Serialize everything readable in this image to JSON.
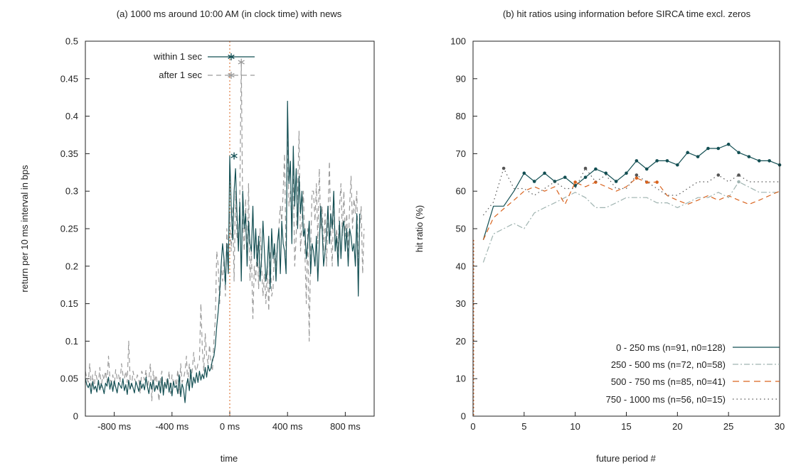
{
  "colors": {
    "teal": "#134f53",
    "gray": "#9a9a9a",
    "lightgray": "#9fb3b0",
    "orange": "#d9631e",
    "darkgray": "#555555",
    "axis": "#222222",
    "vline": "#d9631e"
  },
  "chart_data": [
    {
      "type": "line",
      "title": "(a) 1000 ms around 10:00 AM (in clock time) with news",
      "xlabel": "time",
      "ylabel": "return per 10 ms interval in bps",
      "xlim": [
        -1000,
        1000
      ],
      "ylim": [
        0,
        0.5
      ],
      "xticks": [
        -800,
        -400,
        0,
        400,
        800
      ],
      "xtick_labels": [
        "-800 ms",
        "-400 ms",
        "0 ms",
        "400 ms",
        "800 ms"
      ],
      "yticks": [
        0,
        0.05,
        0.1,
        0.15,
        0.2,
        0.25,
        0.3,
        0.35,
        0.4,
        0.45,
        0.5
      ],
      "ytick_labels": [
        "0",
        "0.05",
        "0.1",
        "0.15",
        "0.2",
        "0.25",
        "0.3",
        "0.35",
        "0.4",
        "0.45",
        "0.5"
      ],
      "vertical_line_x": 0,
      "legend_position": "top-center",
      "series": [
        {
          "name": "within 1 sec",
          "style": "solid",
          "color_key": "teal",
          "x_start": -1000,
          "x_step": 10,
          "values": [
            0.05,
            0.042,
            0.038,
            0.044,
            0.03,
            0.046,
            0.036,
            0.04,
            0.032,
            0.048,
            0.035,
            0.043,
            0.038,
            0.03,
            0.044,
            0.04,
            0.052,
            0.036,
            0.046,
            0.033,
            0.047,
            0.039,
            0.031,
            0.045,
            0.041,
            0.037,
            0.05,
            0.034,
            0.042,
            0.029,
            0.048,
            0.036,
            0.044,
            0.038,
            0.031,
            0.046,
            0.04,
            0.033,
            0.047,
            0.037,
            0.043,
            0.035,
            0.052,
            0.039,
            0.03,
            0.045,
            0.036,
            0.048,
            0.033,
            0.041,
            0.036,
            0.047,
            0.031,
            0.052,
            0.028,
            0.045,
            0.037,
            0.05,
            0.032,
            0.044,
            0.027,
            0.046,
            0.038,
            0.041,
            0.03,
            0.055,
            0.026,
            0.043,
            0.036,
            0.018,
            0.042,
            0.05,
            0.034,
            0.062,
            0.038,
            0.052,
            0.044,
            0.058,
            0.045,
            0.06,
            0.048,
            0.056,
            0.05,
            0.065,
            0.052,
            0.068,
            0.06,
            0.064,
            0.075,
            0.08,
            0.095,
            0.12,
            0.14,
            0.165,
            0.2,
            0.23,
            0.21,
            0.175,
            0.23,
            0.19,
            0.347,
            0.28,
            0.235,
            0.3,
            0.33,
            0.27,
            0.22,
            0.285,
            0.18,
            0.3,
            0.25,
            0.27,
            0.2,
            0.26,
            0.23,
            0.22,
            0.28,
            0.21,
            0.25,
            0.2,
            0.24,
            0.18,
            0.21,
            0.26,
            0.22,
            0.18,
            0.2,
            0.24,
            0.17,
            0.25,
            0.21,
            0.23,
            0.18,
            0.23,
            0.25,
            0.19,
            0.26,
            0.23,
            0.22,
            0.19,
            0.42,
            0.31,
            0.34,
            0.23,
            0.36,
            0.28,
            0.33,
            0.25,
            0.32,
            0.27,
            0.3,
            0.24,
            0.25,
            0.21,
            0.23,
            0.26,
            0.19,
            0.23,
            0.22,
            0.2,
            0.24,
            0.18,
            0.23,
            0.28,
            0.25,
            0.2,
            0.22,
            0.24,
            0.28,
            0.23,
            0.27,
            0.25,
            0.3,
            0.22,
            0.24,
            0.2,
            0.26,
            0.21,
            0.25,
            0.26,
            0.22,
            0.25,
            0.2,
            0.25,
            0.24,
            0.22,
            0.23,
            0.2,
            0.27,
            0.16,
            0.27
          ],
          "marker": {
            "x": 30,
            "y": 0.347,
            "symbol": "asterisk"
          }
        },
        {
          "name": "after 1 sec",
          "style": "dashed",
          "color_key": "gray",
          "x_start": -1000,
          "x_step": 10,
          "values": [
            0.06,
            0.05,
            0.045,
            0.07,
            0.04,
            0.055,
            0.035,
            0.06,
            0.05,
            0.042,
            0.065,
            0.038,
            0.055,
            0.048,
            0.06,
            0.045,
            0.08,
            0.05,
            0.045,
            0.055,
            0.04,
            0.062,
            0.05,
            0.055,
            0.045,
            0.07,
            0.055,
            0.05,
            0.06,
            0.045,
            0.1,
            0.05,
            0.04,
            0.06,
            0.05,
            0.045,
            0.055,
            0.05,
            0.03,
            0.06,
            0.055,
            0.048,
            0.062,
            0.038,
            0.05,
            0.07,
            0.02,
            0.06,
            0.045,
            0.055,
            0.04,
            0.02,
            0.05,
            0.06,
            0.035,
            0.045,
            0.05,
            0.04,
            0.06,
            0.03,
            0.055,
            0.045,
            0.05,
            0.04,
            0.062,
            0.03,
            0.07,
            0.045,
            0.05,
            0.06,
            0.08,
            0.04,
            0.07,
            0.05,
            0.06,
            0.085,
            0.065,
            0.06,
            0.07,
            0.075,
            0.15,
            0.09,
            0.06,
            0.11,
            0.08,
            0.07,
            0.095,
            0.07,
            0.06,
            0.1,
            0.13,
            0.22,
            0.2,
            0.15,
            0.2,
            0.18,
            0.21,
            0.16,
            0.25,
            0.21,
            0.27,
            0.22,
            0.28,
            0.18,
            0.3,
            0.24,
            0.23,
            0.3,
            0.472,
            0.26,
            0.22,
            0.29,
            0.2,
            0.31,
            0.18,
            0.22,
            0.13,
            0.2,
            0.18,
            0.23,
            0.17,
            0.25,
            0.2,
            0.16,
            0.19,
            0.15,
            0.2,
            0.14,
            0.22,
            0.16,
            0.17,
            0.23,
            0.2,
            0.23,
            0.25,
            0.28,
            0.26,
            0.3,
            0.35,
            0.2,
            0.38,
            0.28,
            0.3,
            0.25,
            0.33,
            0.2,
            0.24,
            0.3,
            0.38,
            0.22,
            0.26,
            0.3,
            0.22,
            0.15,
            0.25,
            0.1,
            0.22,
            0.3,
            0.3,
            0.26,
            0.31,
            0.23,
            0.33,
            0.25,
            0.28,
            0.22,
            0.27,
            0.2,
            0.26,
            0.34,
            0.24,
            0.2,
            0.3,
            0.23,
            0.25,
            0.22,
            0.28,
            0.31,
            0.24,
            0.3,
            0.24,
            0.27,
            0.22,
            0.28,
            0.32,
            0.25,
            0.29,
            0.27,
            0.3,
            0.2,
            0.25,
            0.28,
            0.19,
            0.25
          ],
          "marker": {
            "x": 80,
            "y": 0.472,
            "symbol": "asterisk"
          }
        }
      ]
    },
    {
      "type": "line",
      "title": "(b) hit ratios using information before SIRCA time excl. zeros",
      "xlabel": "future period #",
      "ylabel": "hit ratio (%)",
      "xlim": [
        0,
        30
      ],
      "ylim": [
        0,
        100
      ],
      "xticks": [
        0,
        5,
        10,
        15,
        20,
        25,
        30
      ],
      "xtick_labels": [
        "0",
        "5",
        "10",
        "15",
        "20",
        "25",
        "30"
      ],
      "yticks": [
        0,
        10,
        20,
        30,
        40,
        50,
        60,
        70,
        80,
        90,
        100
      ],
      "ytick_labels": [
        "0",
        "10",
        "20",
        "30",
        "40",
        "50",
        "60",
        "70",
        "80",
        "90",
        "100"
      ],
      "legend_position": "bottom-right",
      "x": [
        1,
        2,
        3,
        4,
        5,
        6,
        7,
        8,
        9,
        10,
        11,
        12,
        13,
        14,
        15,
        16,
        17,
        18,
        19,
        20,
        21,
        22,
        23,
        24,
        25,
        26,
        27,
        28,
        29,
        30
      ],
      "series": [
        {
          "name": "0 - 250 ms (n=91, n0=128)",
          "style": "solid",
          "color_key": "teal",
          "values": [
            47,
            56,
            56,
            60,
            64.8,
            62.6,
            64.8,
            62.6,
            63.7,
            61.5,
            63.7,
            65.9,
            64.8,
            62.6,
            64.8,
            68.1,
            65.9,
            68.1,
            68.1,
            67.0,
            70.3,
            69.2,
            71.4,
            71.4,
            72.5,
            70.3,
            69.2,
            68.1,
            68.1,
            67.0
          ],
          "marked_points": [
            5,
            6,
            7,
            8,
            9,
            10,
            11,
            12,
            13,
            14,
            15,
            16,
            17,
            18,
            19,
            20,
            21,
            22,
            23,
            24,
            25,
            26,
            27,
            28,
            29,
            30
          ]
        },
        {
          "name": "250 - 500 ms (n=72, n0=58)",
          "style": "dash-dot",
          "color_key": "lightgray",
          "values": [
            41,
            48.6,
            50.0,
            51.4,
            50.0,
            54.2,
            55.6,
            56.9,
            58.3,
            59.7,
            58.3,
            55.6,
            55.6,
            56.9,
            58.3,
            58.3,
            58.3,
            56.9,
            56.9,
            55.6,
            56.9,
            58.3,
            58.3,
            59.7,
            58.3,
            62.5,
            61.1,
            59.7,
            59.7,
            59.7
          ],
          "marked_points": [
            26
          ]
        },
        {
          "name": "500 - 750 ms (n=85, n0=41)",
          "style": "dashed",
          "color_key": "orange",
          "values": [
            47,
            52.9,
            55.3,
            57.6,
            60.0,
            61.2,
            60.0,
            61.2,
            56.5,
            62.4,
            61.2,
            62.4,
            61.2,
            60.0,
            61.2,
            63.5,
            62.4,
            62.4,
            58.8,
            57.6,
            56.5,
            57.6,
            58.8,
            57.6,
            58.8,
            57.6,
            56.5,
            57.6,
            58.8,
            60.0
          ],
          "marked_points": [
            10,
            12,
            16,
            17,
            18
          ]
        },
        {
          "name": "750 - 1000 ms (n=56, n0=15)",
          "style": "dotted",
          "color_key": "darkgray",
          "values": [
            53.6,
            57.1,
            66.1,
            60.7,
            60.7,
            58.9,
            60.7,
            62.5,
            60.7,
            60.7,
            66.1,
            62.5,
            64.3,
            60.7,
            60.7,
            64.3,
            62.5,
            60.7,
            58.9,
            58.9,
            60.7,
            62.5,
            62.5,
            64.3,
            62.5,
            64.3,
            62.5,
            62.5,
            62.5,
            62.5
          ],
          "marked_points": [
            3,
            11,
            16,
            24,
            26
          ]
        }
      ]
    }
  ]
}
